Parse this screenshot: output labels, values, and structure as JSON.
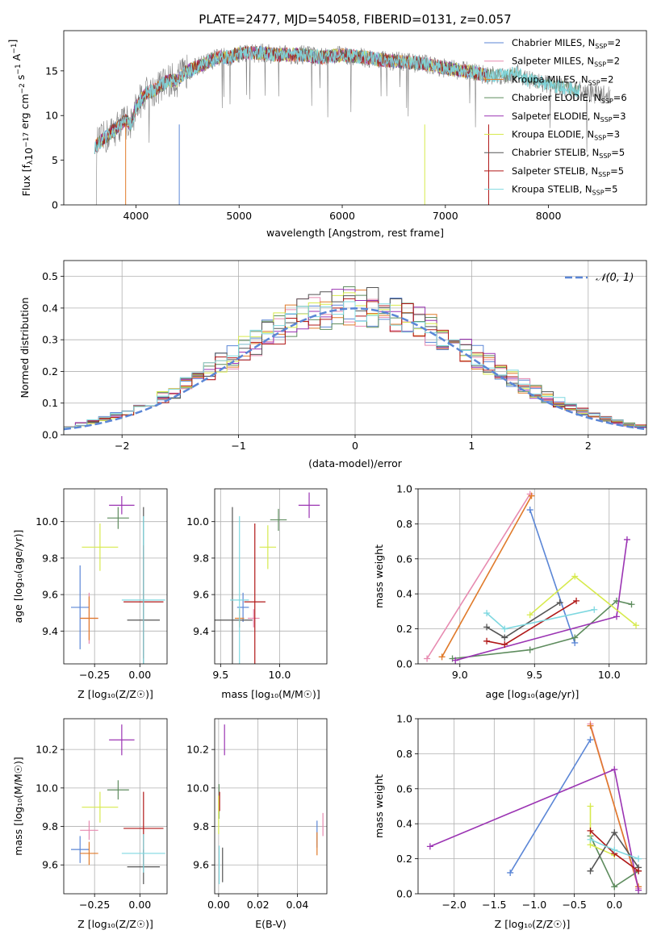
{
  "figure": {
    "title": "PLATE=2477, MJD=54058, FIBERID=0131, z=0.057"
  },
  "colors": {
    "Chabrier MILES": "#5b86d6",
    "Salpeter MILES": "#e78ab0",
    "Kroupa MILES": "#e07a2a",
    "Chabrier ELODIE": "#5e8c5e",
    "Salpeter ELODIE": "#9b34b3",
    "Kroupa ELODIE": "#d7ea4d",
    "Chabrier STELIB": "#555555",
    "Salpeter STELIB": "#b01818",
    "Kroupa STELIB": "#7fd8e0",
    "data": "#808080",
    "gaussian": "#5b86d6"
  },
  "chart_data": [
    {
      "id": "spectrum",
      "type": "line",
      "xlabel": "wavelength [Angstrom, rest frame]",
      "ylabel": "Flux [f_λ10^{−17} erg cm^{−2} s^{−1} A^{−1}]",
      "xlim": [
        3300,
        8950
      ],
      "ylim": [
        0,
        19.5
      ],
      "xticks": [
        4000,
        5000,
        6000,
        7000,
        8000
      ],
      "yticks": [
        0,
        5,
        10,
        15
      ],
      "legend_position": "right",
      "legend": [
        {
          "name": "Chabrier MILES",
          "nssp": "2"
        },
        {
          "name": "Salpeter MILES",
          "nssp": "2"
        },
        {
          "name": "Kroupa MILES",
          "nssp": "2"
        },
        {
          "name": "Chabrier ELODIE",
          "nssp": "6"
        },
        {
          "name": "Salpeter ELODIE",
          "nssp": "3"
        },
        {
          "name": "Kroupa ELODIE",
          "nssp": "3"
        },
        {
          "name": "Chabrier STELIB",
          "nssp": "5"
        },
        {
          "name": "Salpeter STELIB",
          "nssp": "5"
        },
        {
          "name": "Kroupa STELIB",
          "nssp": "5"
        }
      ],
      "continuum": {
        "x": [
          3600,
          3700,
          3800,
          3900,
          3950,
          4000,
          4100,
          4200,
          4300,
          4400,
          4500,
          4600,
          4700,
          4800,
          4900,
          5000,
          5200,
          5400,
          5600,
          5800,
          6000,
          6200,
          6400,
          6600,
          6800,
          7000,
          7200,
          7400,
          7600,
          7700,
          7800,
          8000,
          8200,
          8400,
          8700
        ],
        "y": [
          6.5,
          7.5,
          8.5,
          9.5,
          9,
          11,
          12.5,
          13,
          13.8,
          14,
          15,
          15.5,
          16,
          16.5,
          16.5,
          17,
          17,
          16.8,
          16.8,
          16.5,
          16.8,
          16.5,
          16.2,
          16,
          15.8,
          15.3,
          15,
          14.5,
          14.5,
          14.8,
          14,
          13.5,
          13,
          12.5,
          12.2
        ]
      }
    },
    {
      "id": "residuals",
      "type": "histogram",
      "xlabel": "(data-model)/error",
      "ylabel": "Normed distribution",
      "xlim": [
        -2.5,
        2.5
      ],
      "ylim": [
        0,
        0.55
      ],
      "xticks": [
        -2,
        -1,
        0,
        1,
        2
      ],
      "yticks": [
        0.0,
        0.1,
        0.2,
        0.3,
        0.4,
        0.5
      ],
      "legend_label": "𝒩(0, 1)",
      "legend_position": "top-right",
      "gaussian": {
        "mean": 0,
        "sigma": 1
      }
    },
    {
      "id": "age-vs-Z",
      "type": "errorbar",
      "xlabel": "Z [log₁₀(Z/Z☉)]",
      "ylabel": "age  [log₁₀(age/yr)]",
      "xlim": [
        -0.42,
        0.15
      ],
      "ylim": [
        9.22,
        10.18
      ],
      "xticks": [
        -0.25,
        0.0
      ],
      "yticks": [
        9.4,
        9.6,
        9.8,
        10.0
      ],
      "points": [
        {
          "series": "Chabrier MILES",
          "x": -0.33,
          "xerr": 0.05,
          "y": 9.53,
          "yerr": 0.23
        },
        {
          "series": "Salpeter MILES",
          "x": -0.28,
          "xerr": 0.05,
          "y": 9.47,
          "yerr": 0.14
        },
        {
          "series": "Kroupa MILES",
          "x": -0.28,
          "xerr": 0.05,
          "y": 9.47,
          "yerr": 0.12
        },
        {
          "series": "Chabrier ELODIE",
          "x": -0.12,
          "xerr": 0.06,
          "y": 10.02,
          "yerr": 0.06
        },
        {
          "series": "Salpeter ELODIE",
          "x": -0.1,
          "xerr": 0.07,
          "y": 10.09,
          "yerr": 0.05
        },
        {
          "series": "Kroupa ELODIE",
          "x": -0.22,
          "xerr": 0.1,
          "y": 9.86,
          "yerr": 0.13
        },
        {
          "series": "Chabrier STELIB",
          "x": 0.02,
          "xerr": 0.09,
          "y": 9.46,
          "yerr": 0.62
        },
        {
          "series": "Salpeter STELIB",
          "x": 0.02,
          "xerr": 0.11,
          "y": 9.56,
          "yerr": 0.31
        },
        {
          "series": "Kroupa STELIB",
          "x": 0.02,
          "xerr": 0.12,
          "y": 9.57,
          "yerr": 0.46
        }
      ]
    },
    {
      "id": "age-vs-mass",
      "type": "errorbar",
      "xlabel": "mass [log₁₀(M/M☉)]",
      "ylabel": "",
      "xlim": [
        9.45,
        10.4
      ],
      "ylim": [
        9.22,
        10.18
      ],
      "xticks": [
        9.5,
        10.0
      ],
      "yticks": [
        9.4,
        9.6,
        9.8,
        10.0
      ],
      "points": [
        {
          "series": "Chabrier MILES",
          "x": 9.69,
          "xerr": 0.05,
          "y": 9.53,
          "yerr": 0.08
        },
        {
          "series": "Salpeter MILES",
          "x": 9.78,
          "xerr": 0.05,
          "y": 9.47,
          "yerr": 0.05
        },
        {
          "series": "Kroupa MILES",
          "x": 9.66,
          "xerr": 0.04,
          "y": 9.47,
          "yerr": 0.05
        },
        {
          "series": "Chabrier ELODIE",
          "x": 9.99,
          "xerr": 0.07,
          "y": 10.01,
          "yerr": 0.06
        },
        {
          "series": "Salpeter ELODIE",
          "x": 10.25,
          "xerr": 0.09,
          "y": 10.09,
          "yerr": 0.07
        },
        {
          "series": "Kroupa ELODIE",
          "x": 9.9,
          "xerr": 0.07,
          "y": 9.86,
          "yerr": 0.12
        },
        {
          "series": "Chabrier STELIB",
          "x": 9.6,
          "xerr": 0.17,
          "y": 9.46,
          "yerr": 0.62
        },
        {
          "series": "Salpeter STELIB",
          "x": 9.79,
          "xerr": 0.09,
          "y": 9.56,
          "yerr": 0.43
        },
        {
          "series": "Kroupa STELIB",
          "x": 9.66,
          "xerr": 0.08,
          "y": 9.57,
          "yerr": 0.46
        }
      ]
    },
    {
      "id": "mass-weight-vs-age",
      "type": "line",
      "xlabel": "age  [log₁₀(age/yr)]",
      "ylabel": "mass weight",
      "xlim": [
        8.72,
        10.25
      ],
      "ylim": [
        0,
        1.0
      ],
      "xticks": [
        9.0,
        9.5,
        10.0
      ],
      "yticks": [
        0.0,
        0.2,
        0.4,
        0.6,
        0.8,
        1.0
      ],
      "series": [
        {
          "name": "Chabrier MILES",
          "x": [
            9.47,
            9.77
          ],
          "y": [
            0.88,
            0.12
          ]
        },
        {
          "name": "Salpeter MILES",
          "x": [
            8.78,
            9.47
          ],
          "y": [
            0.03,
            0.97
          ]
        },
        {
          "name": "Kroupa MILES",
          "x": [
            8.88,
            9.48
          ],
          "y": [
            0.04,
            0.96
          ]
        },
        {
          "name": "Chabrier ELODIE",
          "x": [
            8.95,
            9.47,
            9.77,
            10.05,
            10.15
          ],
          "y": [
            0.03,
            0.08,
            0.15,
            0.36,
            0.34
          ]
        },
        {
          "name": "Salpeter ELODIE",
          "x": [
            8.97,
            10.05,
            10.12
          ],
          "y": [
            0.02,
            0.27,
            0.71
          ]
        },
        {
          "name": "Kroupa ELODIE",
          "x": [
            9.47,
            9.77,
            10.18
          ],
          "y": [
            0.28,
            0.5,
            0.22
          ]
        },
        {
          "name": "Chabrier STELIB",
          "x": [
            9.18,
            9.3,
            9.67
          ],
          "y": [
            0.21,
            0.15,
            0.35
          ]
        },
        {
          "name": "Salpeter STELIB",
          "x": [
            9.18,
            9.3,
            9.78
          ],
          "y": [
            0.13,
            0.11,
            0.36
          ]
        },
        {
          "name": "Kroupa STELIB",
          "x": [
            9.18,
            9.3,
            9.9
          ],
          "y": [
            0.29,
            0.2,
            0.31
          ]
        }
      ]
    },
    {
      "id": "mass-vs-Z",
      "type": "errorbar",
      "xlabel": "Z [log₁₀(Z/Z☉)]",
      "ylabel": "mass [log₁₀(M/M☉)]",
      "xlim": [
        -0.42,
        0.15
      ],
      "ylim": [
        9.45,
        10.36
      ],
      "xticks": [
        -0.25,
        0.0
      ],
      "yticks": [
        9.6,
        9.8,
        10.0,
        10.2
      ],
      "points": [
        {
          "series": "Chabrier MILES",
          "x": -0.33,
          "xerr": 0.05,
          "y": 9.68,
          "yerr": 0.07
        },
        {
          "series": "Salpeter MILES",
          "x": -0.28,
          "xerr": 0.05,
          "y": 9.78,
          "yerr": 0.05
        },
        {
          "series": "Kroupa MILES",
          "x": -0.28,
          "xerr": 0.05,
          "y": 9.66,
          "yerr": 0.06
        },
        {
          "series": "Chabrier ELODIE",
          "x": -0.12,
          "xerr": 0.06,
          "y": 9.99,
          "yerr": 0.05
        },
        {
          "series": "Salpeter ELODIE",
          "x": -0.1,
          "xerr": 0.07,
          "y": 10.25,
          "yerr": 0.08
        },
        {
          "series": "Kroupa ELODIE",
          "x": -0.22,
          "xerr": 0.1,
          "y": 9.9,
          "yerr": 0.08
        },
        {
          "series": "Chabrier STELIB",
          "x": 0.02,
          "xerr": 0.09,
          "y": 9.59,
          "yerr": 0.09
        },
        {
          "series": "Salpeter STELIB",
          "x": 0.02,
          "xerr": 0.11,
          "y": 9.79,
          "yerr": 0.19
        },
        {
          "series": "Kroupa STELIB",
          "x": 0.02,
          "xerr": 0.12,
          "y": 9.66,
          "yerr": 0.1
        }
      ]
    },
    {
      "id": "mass-vs-EBV",
      "type": "errorbar",
      "xlabel": "E(B-V)",
      "ylabel": "",
      "xlim": [
        -0.002,
        0.055
      ],
      "ylim": [
        9.45,
        10.36
      ],
      "xticks": [
        0.0,
        0.02,
        0.04
      ],
      "yticks": [
        9.6,
        9.8,
        10.0,
        10.2
      ],
      "points": [
        {
          "series": "Chabrier MILES",
          "x": 0.05,
          "xerr": 0,
          "y": 9.76,
          "yerr": 0.07
        },
        {
          "series": "Salpeter MILES",
          "x": 0.053,
          "xerr": 0,
          "y": 9.81,
          "yerr": 0.06
        },
        {
          "series": "Kroupa MILES",
          "x": 0.05,
          "xerr": 0,
          "y": 9.71,
          "yerr": 0.06
        },
        {
          "series": "Chabrier ELODIE",
          "x": 0.0002,
          "xerr": 0,
          "y": 9.93,
          "yerr": 0.09
        },
        {
          "series": "Salpeter ELODIE",
          "x": 0.003,
          "xerr": 0,
          "y": 10.25,
          "yerr": 0.08
        },
        {
          "series": "Kroupa ELODIE",
          "x": 0.0,
          "xerr": 0,
          "y": 9.86,
          "yerr": 0.1
        },
        {
          "series": "Chabrier STELIB",
          "x": 0.002,
          "xerr": 0,
          "y": 9.6,
          "yerr": 0.09
        },
        {
          "series": "Salpeter STELIB",
          "x": 0.0005,
          "xerr": 0,
          "y": 9.93,
          "yerr": 0.05
        },
        {
          "series": "Kroupa STELIB",
          "x": 0.0003,
          "xerr": 0,
          "y": 9.6,
          "yerr": 0.1
        }
      ]
    },
    {
      "id": "mass-weight-vs-Z",
      "type": "line",
      "xlabel": "Z [log₁₀(Z/Z☉)]",
      "ylabel": "mass weight",
      "xlim": [
        -2.45,
        0.4
      ],
      "ylim": [
        0,
        1.0
      ],
      "xticks": [
        -2.0,
        -1.5,
        -1.0,
        -0.5,
        0.0
      ],
      "yticks": [
        0.0,
        0.2,
        0.4,
        0.6,
        0.8,
        1.0
      ],
      "series": [
        {
          "name": "Chabrier MILES",
          "x": [
            -1.3,
            -0.3
          ],
          "y": [
            0.12,
            0.88
          ]
        },
        {
          "name": "Salpeter MILES",
          "x": [
            -0.3,
            0.3
          ],
          "y": [
            0.97,
            0.03
          ]
        },
        {
          "name": "Kroupa MILES",
          "x": [
            -0.3,
            0.3
          ],
          "y": [
            0.96,
            0.04
          ]
        },
        {
          "name": "Chabrier ELODIE",
          "x": [
            -0.3,
            0.0,
            0.3
          ],
          "y": [
            0.33,
            0.04,
            0.13
          ]
        },
        {
          "name": "Salpeter ELODIE",
          "x": [
            -2.3,
            0.0,
            0.3
          ],
          "y": [
            0.27,
            0.71,
            0.02
          ]
        },
        {
          "name": "Kroupa ELODIE",
          "x": [
            -0.3,
            -0.3,
            0.0
          ],
          "y": [
            0.5,
            0.28,
            0.22
          ]
        },
        {
          "name": "Chabrier STELIB",
          "x": [
            -0.3,
            0.0,
            0.3
          ],
          "y": [
            0.13,
            0.35,
            0.15
          ]
        },
        {
          "name": "Salpeter STELIB",
          "x": [
            -0.3,
            0.0,
            0.3
          ],
          "y": [
            0.36,
            0.23,
            0.13
          ]
        },
        {
          "name": "Kroupa STELIB",
          "x": [
            -0.3,
            0.0,
            0.3
          ],
          "y": [
            0.31,
            0.25,
            0.2
          ]
        }
      ]
    }
  ]
}
